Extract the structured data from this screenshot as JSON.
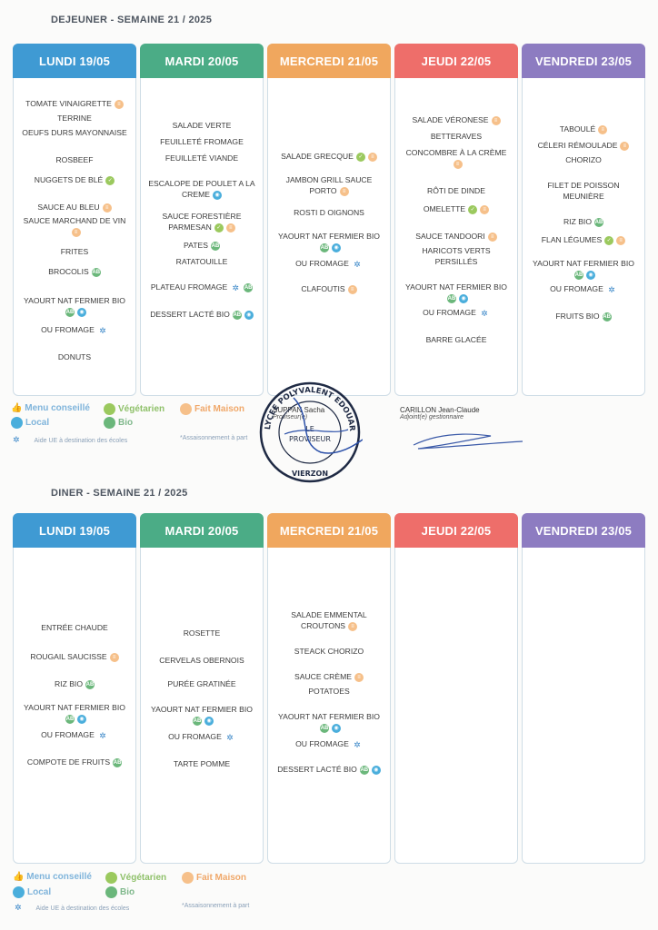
{
  "lunch": {
    "title": "DEJEUNER - SEMAINE 21 / 2025",
    "days": [
      {
        "label": "LUNDI 19/05",
        "color": "#3f9ad3",
        "items": [
          {
            "t": "TOMATE VINAIGRETTE",
            "icons": [
              "fm"
            ],
            "gap": 22
          },
          {
            "t": "TERRINE",
            "icons": [],
            "gap": 4
          },
          {
            "t": "OEUFS DURS MAYONNAISE",
            "icons": [],
            "gap": 4
          },
          {
            "t": "ROSBEEF",
            "icons": [],
            "gap": 18
          },
          {
            "t": "NUGGETS DE BLÉ",
            "icons": [
              "veg"
            ],
            "gap": 10
          },
          {
            "t": "SAUCE AU BLEU",
            "icons": [
              "fm"
            ],
            "gap": 18
          },
          {
            "t": "SAUCE MARCHAND DE VIN",
            "icons": [
              "fm"
            ],
            "gap": 3
          },
          {
            "t": "FRITES",
            "icons": [],
            "gap": 10
          },
          {
            "t": "BROCOLIS",
            "icons": [
              "bio"
            ],
            "gap": 10
          },
          {
            "t": "YAOURT NAT FERMIER BIO",
            "icons": [
              "bio",
              "loc"
            ],
            "gap": 20
          },
          {
            "t": "OU FROMAGE",
            "icons": [
              "ue"
            ],
            "gap": 8
          },
          {
            "t": "DONUTS",
            "icons": [],
            "gap": 18
          }
        ]
      },
      {
        "label": "MARDI 20/05",
        "color": "#4bac86",
        "items": [
          {
            "t": "SALADE VERTE",
            "icons": [],
            "gap": 46
          },
          {
            "t": "FEUILLETÉ FROMAGE",
            "icons": [],
            "gap": 6
          },
          {
            "t": "FEUILLETÉ VIANDE",
            "icons": [],
            "gap": 6
          },
          {
            "t": "ESCALOPE DE POULET A LA CREME",
            "icons": [
              "loc"
            ],
            "gap": 16
          },
          {
            "t": "SAUCE FORESTIÈRE PARMESAN",
            "icons": [
              "veg",
              "fm"
            ],
            "gap": 12
          },
          {
            "t": "PATES",
            "icons": [
              "bio"
            ],
            "gap": 8
          },
          {
            "t": "RATATOUILLE",
            "icons": [],
            "gap": 6
          },
          {
            "t": "PLATEAU FROMAGE",
            "icons": [
              "ue",
              "bio"
            ],
            "gap": 16
          },
          {
            "t": "DESSERT LACTÉ BIO",
            "icons": [
              "bio",
              "loc"
            ],
            "gap": 18
          }
        ]
      },
      {
        "label": "MERCREDI 21/05",
        "color": "#f0a75e",
        "items": [
          {
            "t": "SALADE GRECQUE",
            "icons": [
              "veg",
              "fm"
            ],
            "gap": 80
          },
          {
            "t": "JAMBON GRILL SAUCE PORTO",
            "icons": [
              "fm"
            ],
            "gap": 14
          },
          {
            "t": "ROSTI D OIGNONS",
            "icons": [],
            "gap": 12
          },
          {
            "t": "YAOURT NAT FERMIER BIO",
            "icons": [
              "bio",
              "loc"
            ],
            "gap": 14
          },
          {
            "t": "OU FROMAGE",
            "icons": [
              "ue"
            ],
            "gap": 6
          },
          {
            "t": "CLAFOUTIS",
            "icons": [
              "fm"
            ],
            "gap": 16
          }
        ]
      },
      {
        "label": "JEUDI 22/05",
        "color": "#ee6e6a",
        "items": [
          {
            "t": "SALADE VÉRONESE",
            "icons": [
              "fm"
            ],
            "gap": 40
          },
          {
            "t": "BETTERAVES",
            "icons": [],
            "gap": 6
          },
          {
            "t": "CONCOMBRE À LA CRÈME",
            "icons": [
              "fm"
            ],
            "gap": 6
          },
          {
            "t": "RÔTI DE DINDE",
            "icons": [],
            "gap": 18
          },
          {
            "t": "OMELETTE",
            "icons": [
              "veg",
              "fm"
            ],
            "gap": 8
          },
          {
            "t": "SAUCE TANDOORI",
            "icons": [
              "fm"
            ],
            "gap": 18
          },
          {
            "t": "HARICOTS VERTS PERSILLÉS",
            "icons": [],
            "gap": 4
          },
          {
            "t": "YAOURT NAT FERMIER BIO",
            "icons": [
              "bio",
              "loc"
            ],
            "gap": 16
          },
          {
            "t": "OU FROMAGE",
            "icons": [
              "ue"
            ],
            "gap": 4
          },
          {
            "t": "BARRE GLACÉE",
            "icons": [],
            "gap": 18
          }
        ]
      },
      {
        "label": "VENDREDI 23/05",
        "color": "#8d7cc1",
        "items": [
          {
            "t": "TABOULÉ",
            "icons": [
              "fm"
            ],
            "gap": 50
          },
          {
            "t": "CÉLERI RÉMOULADE",
            "icons": [
              "fm"
            ],
            "gap": 6
          },
          {
            "t": "CHORIZO",
            "icons": [],
            "gap": 4
          },
          {
            "t": "FILET DE POISSON MEUNIÈRE",
            "icons": [],
            "gap": 16
          },
          {
            "t": "RIZ BIO",
            "icons": [
              "bio"
            ],
            "gap": 16
          },
          {
            "t": "FLAN LÉGUMES",
            "icons": [
              "veg",
              "fm"
            ],
            "gap": 8
          },
          {
            "t": "YAOURT NAT FERMIER BIO",
            "icons": [
              "bio",
              "loc"
            ],
            "gap": 14
          },
          {
            "t": "OU FROMAGE",
            "icons": [
              "ue"
            ],
            "gap": 4
          },
          {
            "t": "FRUITS BIO",
            "icons": [
              "bio"
            ],
            "gap": 18
          }
        ]
      }
    ]
  },
  "dinner": {
    "title": "DINER - SEMAINE 21 / 2025",
    "days": [
      {
        "label": "LUNDI 19/05",
        "color": "#3f9ad3",
        "items": [
          {
            "t": "ENTRÉE CHAUDE",
            "icons": [],
            "gap": 82
          },
          {
            "t": "ROUGAIL SAUCISSE",
            "icons": [
              "fm"
            ],
            "gap": 20
          },
          {
            "t": "RIZ BIO",
            "icons": [
              "bio"
            ],
            "gap": 18
          },
          {
            "t": "YAOURT NAT FERMIER BIO",
            "icons": [
              "bio",
              "loc"
            ],
            "gap": 14
          },
          {
            "t": "OU FROMAGE",
            "icons": [
              "ue"
            ],
            "gap": 6
          },
          {
            "t": "COMPOTE DE FRUITS",
            "icons": [
              "bio"
            ],
            "gap": 18
          }
        ]
      },
      {
        "label": "MARDI 20/05",
        "color": "#4bac86",
        "items": [
          {
            "t": "ROSETTE",
            "icons": [],
            "gap": 88
          },
          {
            "t": "CERVELAS OBERNOIS",
            "icons": [],
            "gap": 18
          },
          {
            "t": "PURÉE GRATINÉE",
            "icons": [],
            "gap": 14
          },
          {
            "t": "YAOURT NAT FERMIER BIO",
            "icons": [
              "bio",
              "loc"
            ],
            "gap": 16
          },
          {
            "t": "OU FROMAGE",
            "icons": [
              "ue"
            ],
            "gap": 6
          },
          {
            "t": "TARTE POMME",
            "icons": [],
            "gap": 18
          }
        ]
      },
      {
        "label": "MERCREDI 21/05",
        "color": "#f0a75e",
        "items": [
          {
            "t": "SALADE EMMENTAL CROUTONS",
            "icons": [
              "fm"
            ],
            "gap": 68
          },
          {
            "t": "STEACK CHORIZO",
            "icons": [],
            "gap": 16
          },
          {
            "t": "SAUCE CRÈME",
            "icons": [
              "fm"
            ],
            "gap": 16
          },
          {
            "t": "POTATOES",
            "icons": [],
            "gap": 4
          },
          {
            "t": "YAOURT NAT FERMIER BIO",
            "icons": [
              "bio",
              "loc"
            ],
            "gap": 16
          },
          {
            "t": "OU FROMAGE",
            "icons": [
              "ue"
            ],
            "gap": 6
          },
          {
            "t": "DESSERT LACTÉ BIO",
            "icons": [
              "bio",
              "loc"
            ],
            "gap": 16
          }
        ]
      },
      {
        "label": "JEUDI 22/05",
        "color": "#ee6e6a",
        "items": []
      },
      {
        "label": "VENDREDI 23/05",
        "color": "#8d7cc1",
        "items": []
      }
    ]
  },
  "legend": {
    "menu_conseille": "Menu conseillé",
    "vegetarien": "Végétarien",
    "fait_maison": "Fait Maison",
    "local": "Local",
    "bio": "Bio",
    "aide_ue": "Aide UE à destination des écoles",
    "assaisonnement": "*Assaisonnement à part"
  },
  "signatures": {
    "left_name": "SUPPAN Sacha",
    "left_role": "Proviseur(e)",
    "right_name": "CARILLON Jean-Claude",
    "right_role": "Adjoint(e) gestionnaire",
    "stamp_text": "LYCEE POLYVALENT EDOUARD VAILLANT",
    "stamp_center": "LE PROVISEUR",
    "stamp_city": "VIERZON"
  }
}
